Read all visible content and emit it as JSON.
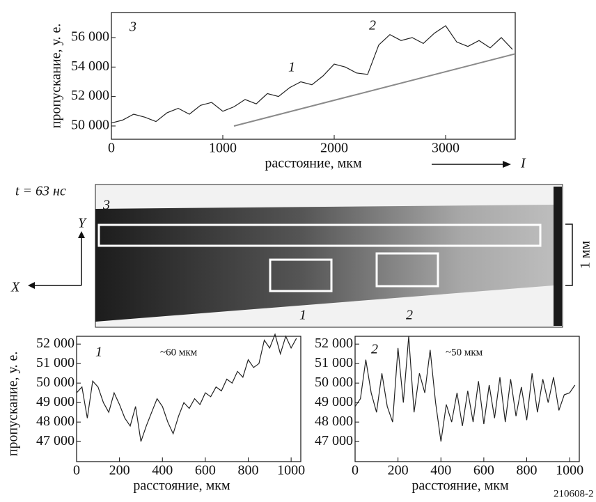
{
  "chart_data": [
    {
      "type": "line",
      "ylabel": "пропускание, у. е.",
      "xlabel": "расстояние, мкм",
      "annotations": [
        "3",
        "1",
        "2",
        "I"
      ],
      "xlim": [
        0,
        3625
      ],
      "ylim": [
        49100,
        57700
      ],
      "xticks": [
        0,
        1000,
        2000,
        3000
      ],
      "yticks": [
        {
          "value": 50000,
          "label": "50 000"
        },
        {
          "value": 52000,
          "label": "52 000"
        },
        {
          "value": 54000,
          "label": "54 000"
        },
        {
          "value": 56000,
          "label": "56 000"
        }
      ],
      "series": [
        {
          "color": "#222222",
          "x": [
            0,
            100,
            200,
            300,
            400,
            500,
            600,
            700,
            800,
            900,
            1000,
            1100,
            1200,
            1300,
            1400,
            1500,
            1600,
            1700,
            1800,
            1900,
            2000,
            2100,
            2200,
            2300,
            2400,
            2500,
            2600,
            2700,
            2800,
            2900,
            3000,
            3100,
            3200,
            3300,
            3400,
            3500,
            3600
          ],
          "values": [
            50200,
            50400,
            50800,
            50600,
            50300,
            50900,
            51200,
            50800,
            51400,
            51600,
            51000,
            51300,
            51800,
            51500,
            52200,
            52000,
            52600,
            53000,
            52800,
            53400,
            54200,
            54000,
            53600,
            53500,
            55500,
            56200,
            55800,
            56000,
            55600,
            56300,
            56800,
            55700,
            55400,
            55800,
            55300,
            56000,
            55200
          ]
        },
        {
          "color": "#8a8a8a",
          "x": [
            1100,
            3625
          ],
          "values": [
            50000,
            54900
          ]
        }
      ]
    },
    {
      "type": "line",
      "ylabel": "пропускание, у. е.",
      "xlabel": "расстояние, мкм",
      "annotations": [
        "1",
        "~60 мкм"
      ],
      "xlim": [
        0,
        1045
      ],
      "ylim": [
        45970,
        52400
      ],
      "xticks": [
        0,
        200,
        400,
        600,
        800,
        1000
      ],
      "yticks": [
        {
          "value": 47000,
          "label": "47 000"
        },
        {
          "value": 48000,
          "label": "48 000"
        },
        {
          "value": 49000,
          "label": "49 000"
        },
        {
          "value": 50000,
          "label": "50 000"
        },
        {
          "value": 51000,
          "label": "51 000"
        },
        {
          "value": 52000,
          "label": "52 000"
        }
      ],
      "series": [
        {
          "color": "#222222",
          "x": [
            0,
            25,
            50,
            75,
            100,
            125,
            150,
            175,
            200,
            225,
            250,
            275,
            300,
            325,
            350,
            375,
            400,
            425,
            450,
            475,
            500,
            525,
            550,
            575,
            600,
            625,
            650,
            675,
            700,
            725,
            750,
            775,
            800,
            825,
            850,
            875,
            900,
            925,
            950,
            975,
            1000,
            1025
          ],
          "values": [
            49500,
            49800,
            48200,
            50100,
            49800,
            49000,
            48500,
            49500,
            48900,
            48200,
            47800,
            48800,
            47000,
            47800,
            48500,
            49200,
            48800,
            48000,
            47400,
            48300,
            49000,
            48700,
            49200,
            48900,
            49500,
            49300,
            49800,
            49600,
            50200,
            50000,
            50600,
            50300,
            51200,
            50800,
            51000,
            52200,
            51800,
            52500,
            51500,
            52400,
            51800,
            52300
          ]
        }
      ]
    },
    {
      "type": "line",
      "xlabel": "расстояние, мкм",
      "annotations": [
        "2",
        "~50 мкм",
        "210608-2"
      ],
      "xlim": [
        0,
        1045
      ],
      "ylim": [
        45970,
        52400
      ],
      "xticks": [
        0,
        200,
        400,
        600,
        800,
        1000
      ],
      "yticks": [
        {
          "value": 47000,
          "label": "47 000"
        },
        {
          "value": 48000,
          "label": "48 000"
        },
        {
          "value": 49000,
          "label": "49 000"
        },
        {
          "value": 50000,
          "label": "50 000"
        },
        {
          "value": 51000,
          "label": "51 000"
        },
        {
          "value": 52000,
          "label": "52 000"
        }
      ],
      "series": [
        {
          "color": "#222222",
          "x": [
            0,
            25,
            50,
            75,
            100,
            125,
            150,
            175,
            200,
            225,
            250,
            275,
            300,
            325,
            350,
            375,
            400,
            425,
            450,
            475,
            500,
            525,
            550,
            575,
            600,
            625,
            650,
            675,
            700,
            725,
            750,
            775,
            800,
            825,
            850,
            875,
            900,
            925,
            950,
            975,
            1000,
            1025
          ],
          "values": [
            48800,
            49200,
            51200,
            49500,
            48500,
            50500,
            48800,
            48000,
            51800,
            49000,
            52400,
            48500,
            50500,
            49500,
            51700,
            49000,
            47000,
            48900,
            48000,
            49500,
            47800,
            49600,
            48000,
            50100,
            47900,
            49900,
            48200,
            50300,
            48000,
            50200,
            48300,
            49800,
            48100,
            50500,
            48500,
            50200,
            49000,
            50300,
            48600,
            49400,
            49500,
            49900
          ]
        }
      ]
    }
  ],
  "image_panel": {
    "time": "t = 63 нс",
    "frame_label": "3",
    "y_axis": "Y",
    "x_axis": "X",
    "region_1": "1",
    "region_2": "2",
    "scale": "1 мм"
  }
}
